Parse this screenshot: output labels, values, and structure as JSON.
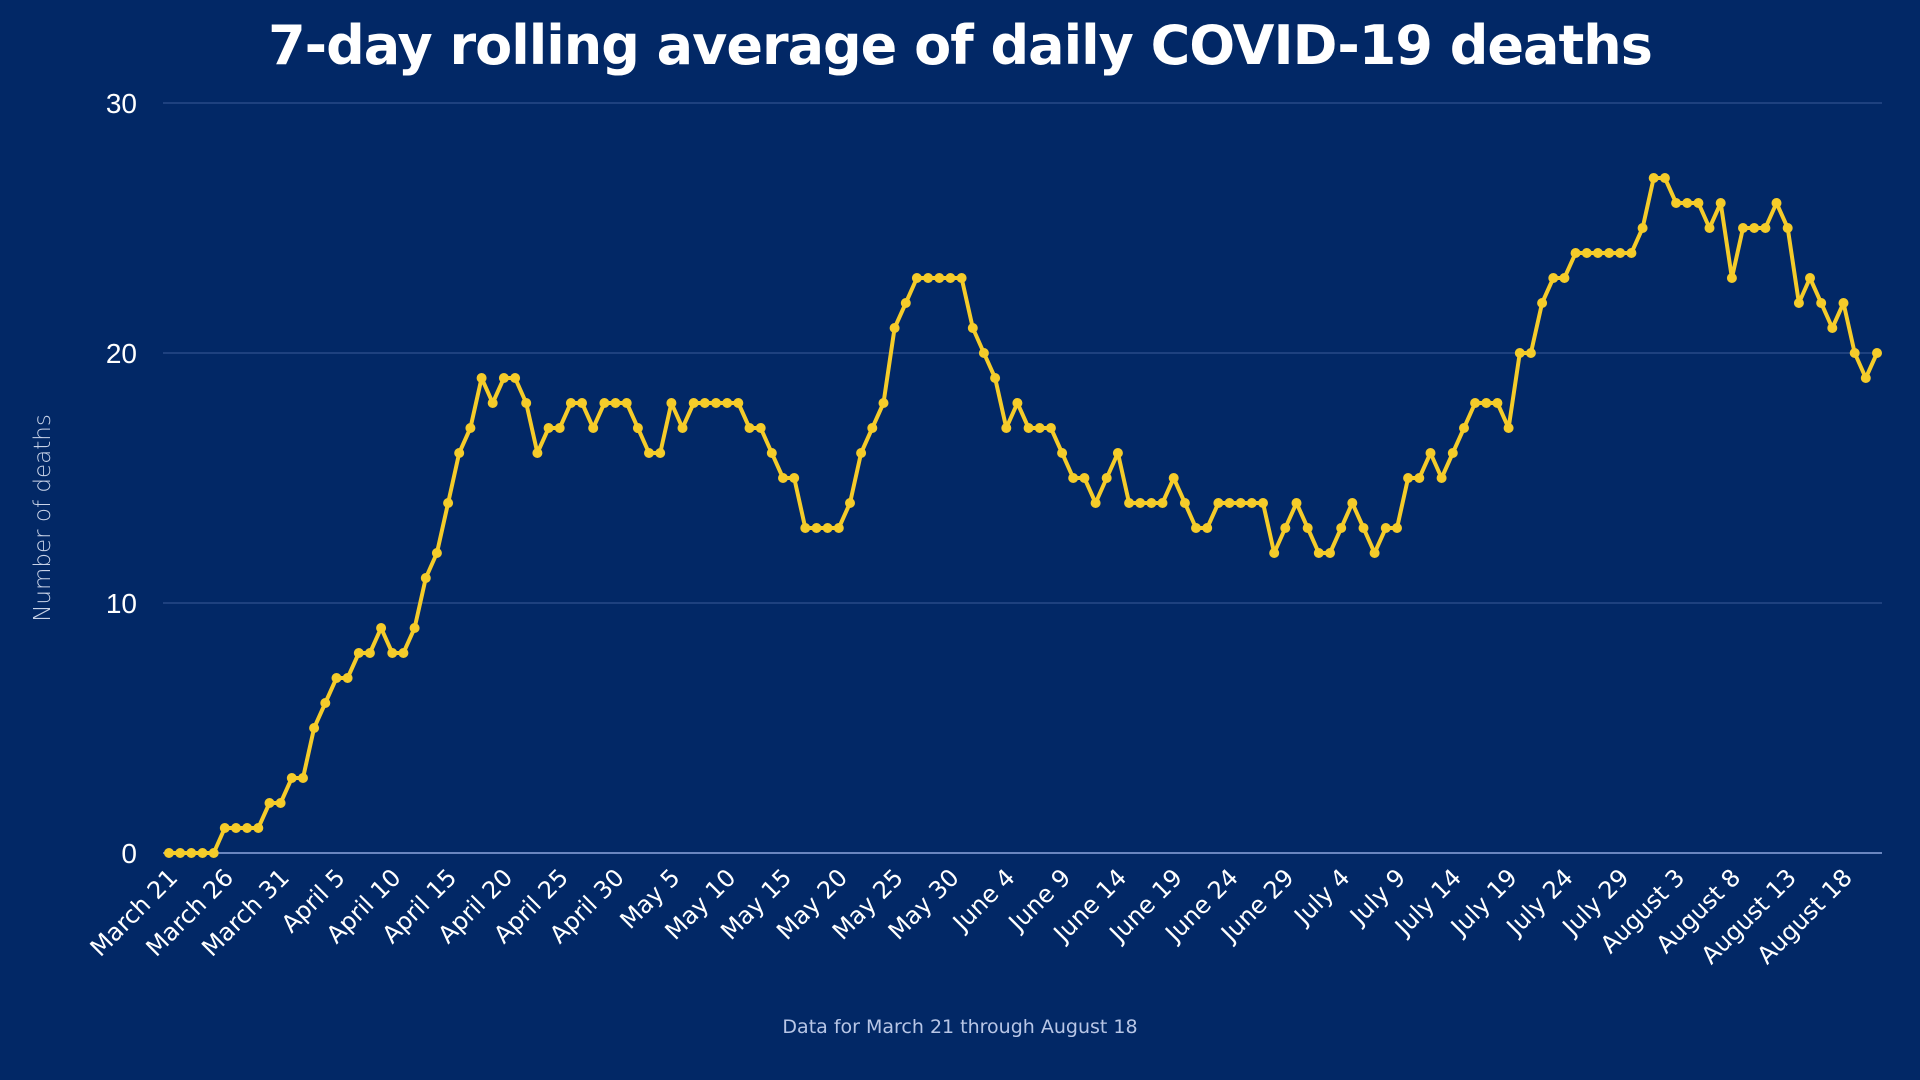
{
  "chart_data": {
    "type": "line",
    "title": "7-day rolling average of daily COVID-19 deaths",
    "xlabel": "",
    "ylabel": "Number of deaths",
    "footnote": "Data for March 21 through August 18",
    "ylim": [
      0,
      30
    ],
    "yticks": [
      0,
      10,
      20,
      30
    ],
    "grid": true,
    "legend": "none",
    "x_tick_every": 5,
    "x_tick_labels": [
      "March 21",
      "March 26",
      "March 31",
      "April 5",
      "April 10",
      "April 15",
      "April 20",
      "April 25",
      "April 30",
      "May 5",
      "May 10",
      "May 15",
      "May 20",
      "May 25",
      "May 30",
      "June 4",
      "June 9",
      "June 14",
      "June 19",
      "June 24",
      "June 29",
      "July 4",
      "July 9",
      "July 14",
      "July 19",
      "July 24",
      "July 29",
      "August 3",
      "August 8",
      "August 13",
      "August 18"
    ],
    "series": [
      {
        "name": "7-day rolling average of daily deaths",
        "color": "#F5CC2A",
        "values": [
          0,
          0,
          0,
          0,
          0,
          1,
          1,
          1,
          1,
          2,
          2,
          3,
          3,
          5,
          6,
          7,
          7,
          8,
          8,
          9,
          8,
          8,
          9,
          11,
          12,
          14,
          16,
          17,
          19,
          18,
          19,
          19,
          18,
          16,
          17,
          17,
          18,
          18,
          17,
          18,
          18,
          18,
          17,
          16,
          16,
          18,
          17,
          18,
          18,
          18,
          18,
          18,
          17,
          17,
          16,
          15,
          15,
          13,
          13,
          13,
          13,
          14,
          16,
          17,
          18,
          21,
          22,
          23,
          23,
          23,
          23,
          23,
          21,
          20,
          19,
          17,
          18,
          17,
          17,
          17,
          16,
          15,
          15,
          14,
          15,
          16,
          14,
          14,
          14,
          14,
          15,
          14,
          13,
          13,
          14,
          14,
          14,
          14,
          14,
          12,
          13,
          14,
          13,
          12,
          12,
          13,
          14,
          13,
          12,
          13,
          13,
          15,
          15,
          16,
          15,
          16,
          17,
          18,
          18,
          18,
          17,
          20,
          20,
          22,
          23,
          23,
          24,
          24,
          24,
          24,
          24,
          24,
          25,
          27,
          27,
          26,
          26,
          26,
          25,
          26,
          23,
          25,
          25,
          25,
          26,
          25,
          22,
          23,
          22,
          21,
          22,
          20,
          19,
          20
        ]
      }
    ]
  },
  "colors": {
    "background": "#022866",
    "line": "#F5CC2A",
    "grid": "#3B5A98",
    "baseline": "#6A86C0"
  }
}
